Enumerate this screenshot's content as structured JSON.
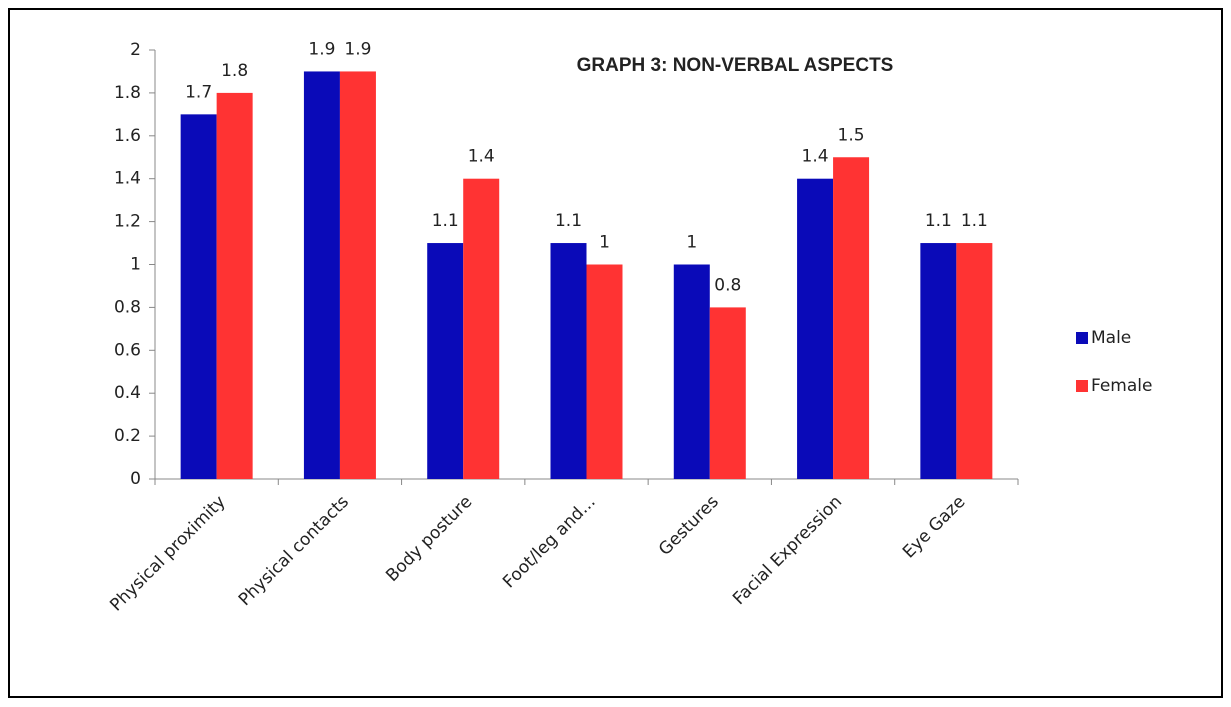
{
  "chart_data": {
    "type": "bar",
    "title": "GRAPH 3: NON-VERBAL ASPECTS",
    "categories": [
      "Physical proximity",
      "Physical contacts",
      "Body posture",
      "Foot/leg and...",
      "Gestures",
      "Facial Expression",
      "Eye Gaze"
    ],
    "series": [
      {
        "name": "Male",
        "color": "#0a0ab8",
        "values": [
          1.7,
          1.9,
          1.1,
          1.1,
          1,
          1.4,
          1.1
        ]
      },
      {
        "name": "Female",
        "color": "#ff3333",
        "values": [
          1.8,
          1.9,
          1.4,
          1,
          0.8,
          1.5,
          1.1
        ]
      }
    ],
    "ylim": [
      0,
      2
    ],
    "yticks": [
      0,
      0.2,
      0.4,
      0.6,
      0.8,
      1,
      1.2,
      1.4,
      1.6,
      1.8,
      2
    ],
    "grid": false,
    "legend": "right"
  }
}
